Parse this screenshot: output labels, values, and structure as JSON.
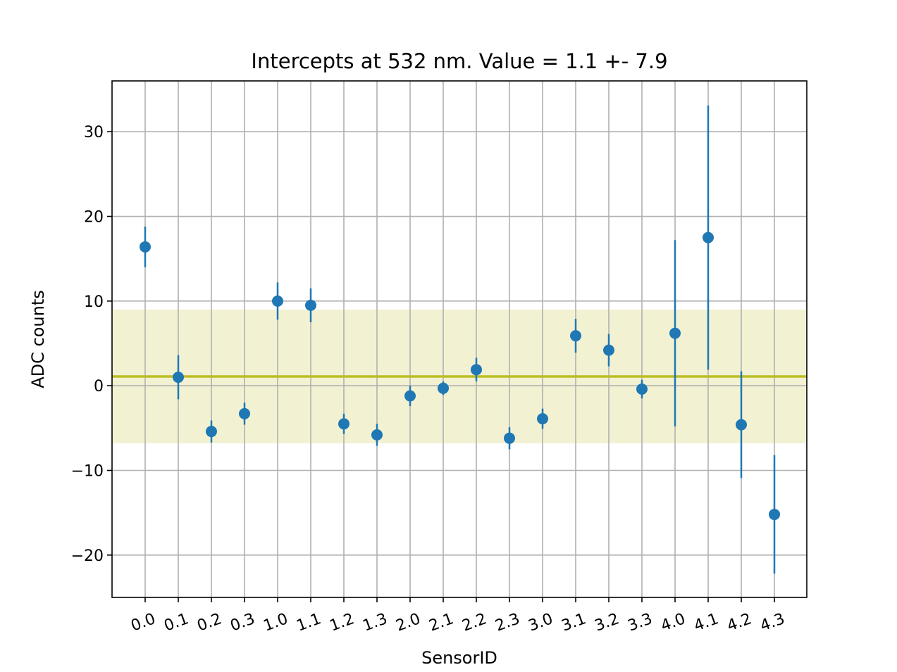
{
  "chart_data": {
    "type": "scatter",
    "title": "Intercepts at 532 nm. Value = 1.1 +- 7.9",
    "xlabel": "SensorID",
    "ylabel": "ADC counts",
    "categories": [
      "0.0",
      "0.1",
      "0.2",
      "0.3",
      "1.0",
      "1.1",
      "1.2",
      "1.3",
      "2.0",
      "2.1",
      "2.2",
      "2.3",
      "3.0",
      "3.1",
      "3.2",
      "3.3",
      "4.0",
      "4.1",
      "4.2",
      "4.3"
    ],
    "values": [
      16.4,
      1.0,
      -5.4,
      -3.3,
      10.0,
      9.5,
      -4.5,
      -5.8,
      -1.2,
      -0.3,
      1.9,
      -6.2,
      -3.9,
      5.9,
      4.2,
      -0.4,
      6.2,
      17.5,
      -4.6,
      -15.2
    ],
    "errors": [
      2.4,
      2.6,
      1.3,
      1.3,
      2.2,
      2.0,
      1.2,
      1.3,
      1.2,
      0.8,
      1.4,
      1.3,
      1.2,
      2.0,
      1.9,
      1.1,
      11.0,
      15.6,
      6.3,
      7.0
    ],
    "mean": 1.1,
    "std": 7.9,
    "ylim": [
      -25,
      36
    ],
    "yticks": [
      -20,
      -10,
      0,
      10,
      20,
      30
    ],
    "grid": true,
    "xtick_rotation_deg": 20,
    "colors": {
      "points": "#1f77b4",
      "mean_line": "#bcbd22",
      "band": "#bcbd22",
      "grid": "#b0b0b0"
    }
  }
}
